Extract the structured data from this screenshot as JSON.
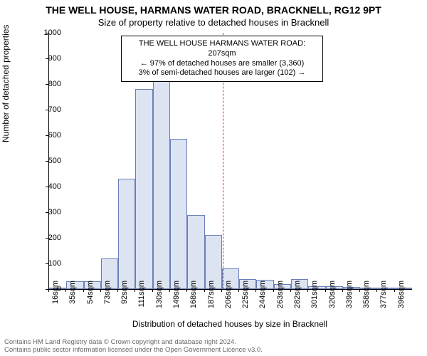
{
  "title_line1": "THE WELL HOUSE, HARMANS WATER ROAD, BRACKNELL, RG12 9PT",
  "title_line2": "Size of property relative to detached houses in Bracknell",
  "ylabel": "Number of detached properties",
  "xlabel": "Distribution of detached houses by size in Bracknell",
  "footer1": "Contains HM Land Registry data © Crown copyright and database right 2024.",
  "footer2": "Contains public sector information licensed under the Open Government Licence v3.0.",
  "annot": {
    "line1": "THE WELL HOUSE HARMANS WATER ROAD: 207sqm",
    "line2": "← 97% of detached houses are smaller (3,360)",
    "line3": "3% of semi-detached houses are larger (102) →"
  },
  "chart": {
    "type": "histogram",
    "background_color": "#ffffff",
    "bar_fill": "#dce4f2",
    "bar_stroke": "#6a7fb8",
    "marker_color": "#d83030",
    "marker_x": 207,
    "ylim": [
      0,
      1000
    ],
    "ytick_step": 100,
    "x_tick_start": 16,
    "x_tick_step": 19,
    "x_tick_count": 21,
    "x_tick_suffix": "sqm",
    "bar_start": 16,
    "bar_width_units": 19,
    "values": [
      5,
      30,
      30,
      120,
      430,
      780,
      810,
      585,
      290,
      210,
      80,
      40,
      35,
      20,
      40,
      12,
      10,
      8,
      5,
      4,
      3
    ],
    "title_fontsize": 14,
    "subtitle_fontsize": 13,
    "label_fontsize": 12,
    "tick_fontsize": 11
  }
}
